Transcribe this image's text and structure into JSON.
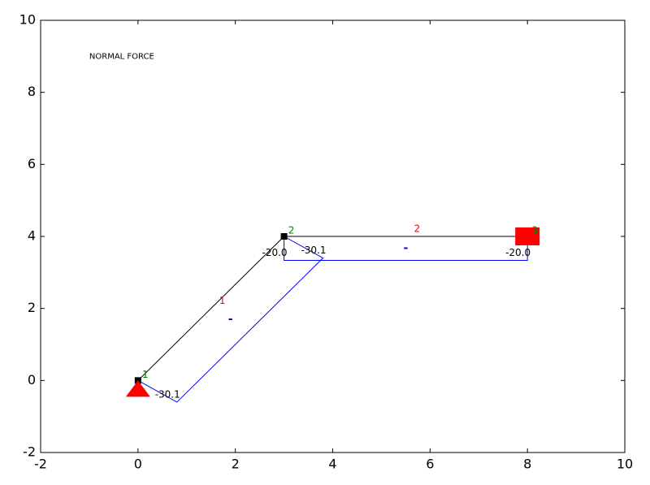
{
  "chart_data": {
    "type": "normal-force-diagram",
    "annotation": "NORMAL FORCE",
    "annotation_x": -1,
    "annotation_y": 9,
    "xlim": [
      -2,
      10
    ],
    "ylim": [
      -2,
      10
    ],
    "xticks": [
      -2,
      0,
      2,
      4,
      6,
      8,
      10
    ],
    "yticks": [
      -2,
      0,
      2,
      4,
      6,
      8,
      10
    ],
    "structure_color": "#000000",
    "diagram_color": "#0000ff",
    "element_label_color": "#ff0000",
    "node_label_color": "#008000",
    "support_color": "#ff0000",
    "nodes": [
      {
        "label": "1",
        "x": 0,
        "y": 0,
        "support": "hinged"
      },
      {
        "label": "2",
        "x": 3,
        "y": 4,
        "support": null
      },
      {
        "label": "3",
        "x": 8,
        "y": 4,
        "support": "fixed"
      }
    ],
    "elements": [
      {
        "label": "1",
        "nodes": [
          0,
          1
        ],
        "values": [
          -30.1,
          -30.1
        ],
        "value_labels": [
          "-30.1",
          "-30.1"
        ],
        "sign": "-"
      },
      {
        "label": "2",
        "nodes": [
          1,
          2
        ],
        "values": [
          -20.0,
          -20.0
        ],
        "value_labels": [
          "-20.0",
          "-20.0"
        ],
        "sign": "-"
      }
    ]
  }
}
